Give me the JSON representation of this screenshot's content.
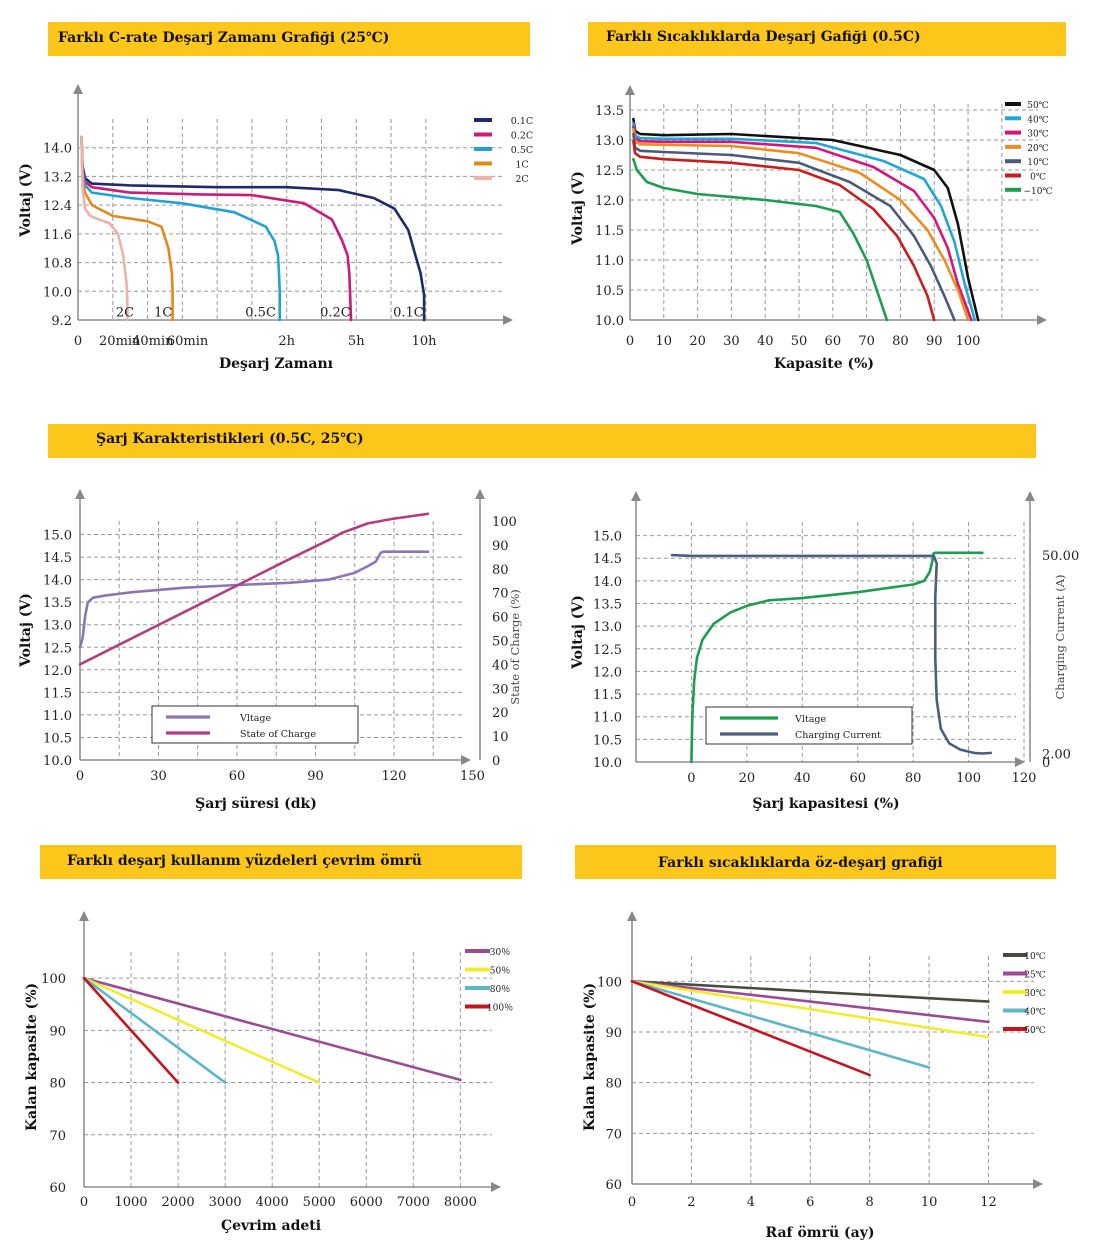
{
  "banners": {
    "discharge_crate": "Farklı C-rate Deşarj Zamanı Grafiği (25℃)",
    "discharge_temp": "Farklı Sıcaklıklarda Deşarj Gafiği (0.5C)",
    "charge": "Şarj Karakteristikleri (0.5C, 25℃)",
    "cycle_life": "Farklı deşarj kullanım yüzdeleri çevrim ömrü",
    "self_discharge": "Farklı sıcaklıklarda öz-deşarj grafiği"
  },
  "charts": [
    {
      "type": "line",
      "xlabel": "Deşarj Zamanı",
      "ylabel": "Voltaj (V)",
      "xlim": [
        0,
        11.5
      ],
      "ylim": [
        9.2,
        14.8
      ],
      "yticks": [
        "9.2",
        "10.0",
        "10.8",
        "11.6",
        "12.4",
        "13.2",
        "14.0"
      ],
      "xticks": [
        {
          "v": 0,
          "t": "0"
        },
        {
          "v": 1.2,
          "t": "20min"
        },
        {
          "v": 2.15,
          "t": "40min"
        },
        {
          "v": 3.15,
          "t": "60min"
        },
        {
          "v": 6,
          "t": "2h"
        },
        {
          "v": 8,
          "t": "5h"
        },
        {
          "v": 9.95,
          "t": "10h"
        }
      ],
      "grid_x": [
        0,
        1,
        2,
        3,
        4,
        5,
        6,
        7,
        8,
        9,
        10
      ],
      "grid_y": [
        9.2,
        10.0,
        10.8,
        11.6,
        12.4,
        13.2,
        14.0
      ],
      "legend_position": "top-right",
      "series": [
        {
          "name": "0.1C",
          "color": "#1f2a6b",
          "end_label": "0.1C",
          "end_label_at": [
            9.5,
            9.35
          ],
          "x": [
            0.1,
            0.13,
            0.2,
            0.4,
            1.5,
            4,
            6,
            7.5,
            8.5,
            9.1,
            9.5,
            9.7,
            9.85,
            9.9,
            9.95,
            9.95
          ],
          "y": [
            14.3,
            13.5,
            13.15,
            13.0,
            12.95,
            12.9,
            12.9,
            12.82,
            12.6,
            12.3,
            11.7,
            11.0,
            10.5,
            10.2,
            9.9,
            9.2
          ]
        },
        {
          "name": "0.2C",
          "color": "#cc1a7a",
          "end_label": "0.2C",
          "end_label_at": [
            7.4,
            9.35
          ],
          "x": [
            0.1,
            0.13,
            0.2,
            0.4,
            1.5,
            3.5,
            5.0,
            6.5,
            7.3,
            7.6,
            7.75,
            7.8,
            7.82,
            7.85
          ],
          "y": [
            14.3,
            13.4,
            13.05,
            12.9,
            12.75,
            12.7,
            12.68,
            12.45,
            12.0,
            11.4,
            11.0,
            10.5,
            10.0,
            9.2
          ]
        },
        {
          "name": "0.5C",
          "color": "#21a1d8",
          "end_label": "0.5C",
          "end_label_at": [
            5.25,
            9.35
          ],
          "x": [
            0.1,
            0.13,
            0.2,
            0.4,
            1.5,
            3.0,
            4.5,
            5.4,
            5.65,
            5.75,
            5.78,
            5.8,
            5.8
          ],
          "y": [
            14.3,
            13.3,
            12.95,
            12.75,
            12.6,
            12.45,
            12.2,
            11.8,
            11.4,
            11.0,
            10.5,
            10.0,
            9.2
          ]
        },
        {
          "name": "1C",
          "color": "#df8a1a",
          "end_label": "1C",
          "end_label_at": [
            2.45,
            9.35
          ],
          "x": [
            0.1,
            0.13,
            0.2,
            0.4,
            1.0,
            2.0,
            2.4,
            2.6,
            2.7,
            2.72,
            2.72
          ],
          "y": [
            14.3,
            13.1,
            12.75,
            12.4,
            12.1,
            11.95,
            11.8,
            11.2,
            10.5,
            10.0,
            9.2
          ]
        },
        {
          "name": "2C",
          "color": "#f0b0ac",
          "end_label": "2C",
          "end_label_at": [
            1.35,
            9.35
          ],
          "x": [
            0.1,
            0.13,
            0.2,
            0.35,
            0.6,
            0.9,
            1.15,
            1.3,
            1.4,
            1.42,
            1.42
          ],
          "y": [
            14.3,
            12.9,
            12.3,
            12.1,
            12.0,
            11.9,
            11.6,
            11.0,
            10.2,
            9.7,
            9.2
          ]
        }
      ]
    },
    {
      "type": "line",
      "xlabel": "Kapasite (%)",
      "ylabel": "Voltaj (V)",
      "xlim": [
        0,
        113
      ],
      "ylim": [
        10.0,
        13.6
      ],
      "yticks": [
        "10.0",
        "10.5",
        "11.0",
        "11.5",
        "12.0",
        "12.5",
        "13.0",
        "13.5"
      ],
      "xticks": [
        {
          "v": 0,
          "t": "0"
        },
        {
          "v": 10,
          "t": "10"
        },
        {
          "v": 20,
          "t": "20"
        },
        {
          "v": 30,
          "t": "30"
        },
        {
          "v": 40,
          "t": "40"
        },
        {
          "v": 50,
          "t": "50"
        },
        {
          "v": 60,
          "t": "60"
        },
        {
          "v": 70,
          "t": "70"
        },
        {
          "v": 80,
          "t": "80"
        },
        {
          "v": 90,
          "t": "90"
        },
        {
          "v": 100,
          "t": "100"
        }
      ],
      "grid_x": [
        0,
        10,
        20,
        30,
        40,
        50,
        60,
        70,
        80,
        90,
        100,
        110
      ],
      "grid_y": [
        10.0,
        10.5,
        11.0,
        11.5,
        12.0,
        12.5,
        13.0,
        13.5
      ],
      "legend_position": "top-right",
      "series": [
        {
          "name": "50℃",
          "color": "#111111",
          "x": [
            1,
            1.5,
            3,
            10,
            30,
            60,
            80,
            90,
            94,
            97,
            100,
            103
          ],
          "y": [
            13.35,
            13.15,
            13.1,
            13.08,
            13.1,
            13.0,
            12.75,
            12.5,
            12.2,
            11.6,
            10.7,
            10.0
          ]
        },
        {
          "name": "40℃",
          "color": "#1fa7dc",
          "x": [
            1,
            1.5,
            3,
            10,
            30,
            55,
            75,
            87,
            92,
            96,
            99,
            102
          ],
          "y": [
            13.28,
            13.08,
            13.03,
            13.02,
            13.02,
            12.95,
            12.65,
            12.35,
            11.9,
            11.3,
            10.6,
            10.0
          ]
        },
        {
          "name": "30℃",
          "color": "#d6147a",
          "x": [
            1,
            1.5,
            3,
            10,
            30,
            55,
            72,
            84,
            90,
            94,
            97,
            101
          ],
          "y": [
            13.22,
            13.03,
            12.98,
            12.97,
            12.97,
            12.87,
            12.55,
            12.15,
            11.7,
            11.2,
            10.6,
            10.0
          ]
        },
        {
          "name": "20℃",
          "color": "#ee8c1e",
          "x": [
            1,
            1.5,
            3,
            10,
            30,
            50,
            68,
            80,
            88,
            93,
            97,
            100
          ],
          "y": [
            13.18,
            12.97,
            12.93,
            12.92,
            12.9,
            12.78,
            12.45,
            12.0,
            11.5,
            11.0,
            10.5,
            10.0
          ]
        },
        {
          "name": "10℃",
          "color": "#4b5a7c",
          "x": [
            1,
            1.5,
            3,
            10,
            30,
            50,
            65,
            77,
            84,
            89,
            93,
            96
          ],
          "y": [
            13.1,
            12.87,
            12.82,
            12.8,
            12.75,
            12.62,
            12.3,
            11.9,
            11.4,
            10.9,
            10.4,
            10.0
          ]
        },
        {
          "name": "0℃",
          "color": "#cb1b1b",
          "x": [
            1,
            1.5,
            3,
            10,
            30,
            50,
            62,
            72,
            79,
            84,
            88,
            90
          ],
          "y": [
            12.98,
            12.78,
            12.72,
            12.68,
            12.62,
            12.5,
            12.25,
            11.85,
            11.4,
            10.9,
            10.4,
            10.0
          ]
        },
        {
          "name": "−10℃",
          "color": "#1e9d4e",
          "x": [
            1,
            2,
            5,
            10,
            20,
            40,
            55,
            62,
            66,
            70,
            73,
            76
          ],
          "y": [
            12.68,
            12.5,
            12.3,
            12.2,
            12.1,
            12.0,
            11.9,
            11.8,
            11.45,
            11.0,
            10.5,
            10.0
          ]
        }
      ]
    },
    {
      "type": "line",
      "xlabel": "Şarj süresi (dk)",
      "ylabel": "Voltaj (V)",
      "y2label": "State of Charge (%)",
      "xlim": [
        0,
        146
      ],
      "ylim": [
        10.0,
        15.3
      ],
      "y2lim": [
        0,
        100
      ],
      "yticks": [
        "10.0",
        "10.5",
        "11.0",
        "11.5",
        "12.0",
        "12.5",
        "13.0",
        "13.5",
        "14.0",
        "14.5",
        "15.0"
      ],
      "y2ticks": [
        "0",
        "10",
        "20",
        "30",
        "40",
        "50",
        "60",
        "70",
        "80",
        "90",
        "100"
      ],
      "xticks": [
        {
          "v": 0,
          "t": "0"
        },
        {
          "v": 30,
          "t": "30"
        },
        {
          "v": 60,
          "t": "60"
        },
        {
          "v": 90,
          "t": "90"
        },
        {
          "v": 120,
          "t": "120"
        },
        {
          "v": 150,
          "t": "150"
        }
      ],
      "grid_x": [
        0,
        15,
        30,
        45,
        60,
        75,
        90,
        105,
        120,
        135
      ],
      "grid_y": [
        10.0,
        10.5,
        11.0,
        11.5,
        12.0,
        12.5,
        13.0,
        13.5,
        14.0,
        14.5,
        15.0
      ],
      "legend_position": "bottom-left",
      "series": [
        {
          "name": "Vltage",
          "color": "#8c75b5",
          "axis": "left",
          "x": [
            0,
            1,
            2,
            3,
            5,
            10,
            20,
            40,
            60,
            80,
            95,
            105,
            110,
            113,
            115,
            116,
            120,
            130,
            133
          ],
          "y": [
            12.5,
            12.7,
            13.2,
            13.5,
            13.6,
            13.65,
            13.72,
            13.82,
            13.88,
            13.93,
            14.0,
            14.15,
            14.3,
            14.4,
            14.6,
            14.62,
            14.62,
            14.62,
            14.62
          ]
        },
        {
          "name": "State of Charge",
          "color": "#b23d84",
          "axis": "right",
          "x": [
            0,
            20,
            40,
            60,
            80,
            95,
            100,
            110,
            120,
            133
          ],
          "y": [
            40,
            51,
            62,
            73,
            84,
            92,
            95,
            99,
            101,
            103
          ]
        }
      ]
    },
    {
      "type": "line",
      "xlabel": "Şarj kapasitesi (%)",
      "ylabel": "Voltaj (V)",
      "y2label": "Charging Current (A)",
      "xlim": [
        -20,
        120
      ],
      "ylim": [
        10.0,
        15.3
      ],
      "y2lim": [
        0,
        58
      ],
      "yticks": [
        "10.0",
        "10.5",
        "11.0",
        "11.5",
        "12.0",
        "12.5",
        "13.0",
        "13.5",
        "14.0",
        "14.5",
        "15.0"
      ],
      "y2ticks": [
        {
          "v": 50,
          "t": "50.00"
        },
        {
          "v": 2,
          "t": "2.00"
        },
        {
          "v": 0,
          "t": "0"
        }
      ],
      "xticks": [
        {
          "v": 0,
          "t": "0"
        },
        {
          "v": 20,
          "t": "20"
        },
        {
          "v": 40,
          "t": "40"
        },
        {
          "v": 60,
          "t": "60"
        },
        {
          "v": 80,
          "t": "80"
        },
        {
          "v": 100,
          "t": "100"
        },
        {
          "v": 120,
          "t": "120"
        }
      ],
      "grid_x": [
        -20,
        0,
        20,
        40,
        60,
        80,
        100,
        120
      ],
      "grid_y": [
        10.0,
        10.5,
        11.0,
        11.5,
        12.0,
        12.5,
        13.0,
        13.5,
        14.0,
        14.5,
        15.0
      ],
      "legend_position": "bottom-left",
      "series": [
        {
          "name": "Vltage",
          "color": "#1e9d4e",
          "axis": "left",
          "x": [
            0,
            0.3,
            1,
            2,
            4,
            8,
            14,
            20,
            28,
            40,
            60,
            80,
            84,
            86,
            87,
            87.3,
            88,
            95,
            105
          ],
          "y": [
            10.0,
            11.0,
            11.8,
            12.3,
            12.7,
            13.05,
            13.3,
            13.45,
            13.57,
            13.62,
            13.75,
            13.92,
            14.0,
            14.2,
            14.45,
            14.6,
            14.62,
            14.62,
            14.62
          ]
        },
        {
          "name": "Charging Current",
          "color": "#4d5d82",
          "axis": "right",
          "x": [
            -7,
            0,
            40,
            87.5,
            88.5,
            88,
            88,
            88.5,
            90,
            93,
            97,
            102,
            105,
            108
          ],
          "y": [
            50,
            49.8,
            49.8,
            49.8,
            48,
            40,
            25,
            15,
            8,
            4.5,
            3.0,
            2.2,
            2.05,
            2.2
          ]
        }
      ]
    },
    {
      "type": "line",
      "xlabel": "Çevrim adeti",
      "ylabel": "Kalan kapasite (%)",
      "xlim": [
        0,
        8800
      ],
      "ylim": [
        60,
        105
      ],
      "yticks": [
        "60",
        "70",
        "80",
        "90",
        "100"
      ],
      "xticks": [
        {
          "v": 0,
          "t": "0"
        },
        {
          "v": 1000,
          "t": "1000"
        },
        {
          "v": 2000,
          "t": "2000"
        },
        {
          "v": 3000,
          "t": "3000"
        },
        {
          "v": 4000,
          "t": "4000"
        },
        {
          "v": 5000,
          "t": "5000"
        },
        {
          "v": 6000,
          "t": "6000"
        },
        {
          "v": 7000,
          "t": "7000"
        },
        {
          "v": 8000,
          "t": "8000"
        }
      ],
      "grid_x": [
        0,
        1000,
        2000,
        3000,
        4000,
        5000,
        6000,
        7000,
        8000
      ],
      "grid_y": [
        60,
        70,
        80,
        90,
        100
      ],
      "legend_position": "top-right",
      "series": [
        {
          "name": "30％",
          "color": "#9b4a96",
          "x": [
            0,
            8000
          ],
          "y": [
            100,
            80.5
          ]
        },
        {
          "name": "50％",
          "color": "#f4ec2a",
          "x": [
            0,
            5000
          ],
          "y": [
            100,
            80
          ]
        },
        {
          "name": "80％",
          "color": "#5cb7c8",
          "x": [
            0,
            3000
          ],
          "y": [
            100,
            80
          ]
        },
        {
          "name": "100％",
          "color": "#c3141f",
          "x": [
            0,
            2000
          ],
          "y": [
            100,
            80
          ]
        }
      ]
    },
    {
      "type": "line",
      "xlabel": "Raf ömrü (ay)",
      "ylabel": "Kalan kapasite (%)",
      "xlim": [
        0,
        13.8
      ],
      "ylim": [
        60,
        105
      ],
      "yticks": [
        "60",
        "70",
        "80",
        "90",
        "100"
      ],
      "xticks": [
        {
          "v": 0,
          "t": "0"
        },
        {
          "v": 2,
          "t": "2"
        },
        {
          "v": 4,
          "t": "4"
        },
        {
          "v": 6,
          "t": "6"
        },
        {
          "v": 8,
          "t": "8"
        },
        {
          "v": 10,
          "t": "10"
        },
        {
          "v": 12,
          "t": "12"
        }
      ],
      "grid_x": [
        0,
        2,
        4,
        6,
        8,
        10,
        12
      ],
      "grid_y": [
        60,
        70,
        80,
        90,
        100
      ],
      "legend_position": "top-right",
      "series": [
        {
          "name": "10℃",
          "color": "#4a4a40",
          "x": [
            0,
            12
          ],
          "y": [
            100,
            96
          ]
        },
        {
          "name": "25℃",
          "color": "#9b4a96",
          "x": [
            0,
            12
          ],
          "y": [
            100,
            92
          ]
        },
        {
          "name": "30℃",
          "color": "#f4ec2a",
          "x": [
            0,
            12
          ],
          "y": [
            100,
            89
          ]
        },
        {
          "name": "40℃",
          "color": "#5cb7c8",
          "x": [
            0,
            10
          ],
          "y": [
            100,
            83
          ]
        },
        {
          "name": "50℃",
          "color": "#c3141f",
          "x": [
            0,
            8
          ],
          "y": [
            100,
            81.5
          ]
        }
      ]
    }
  ]
}
